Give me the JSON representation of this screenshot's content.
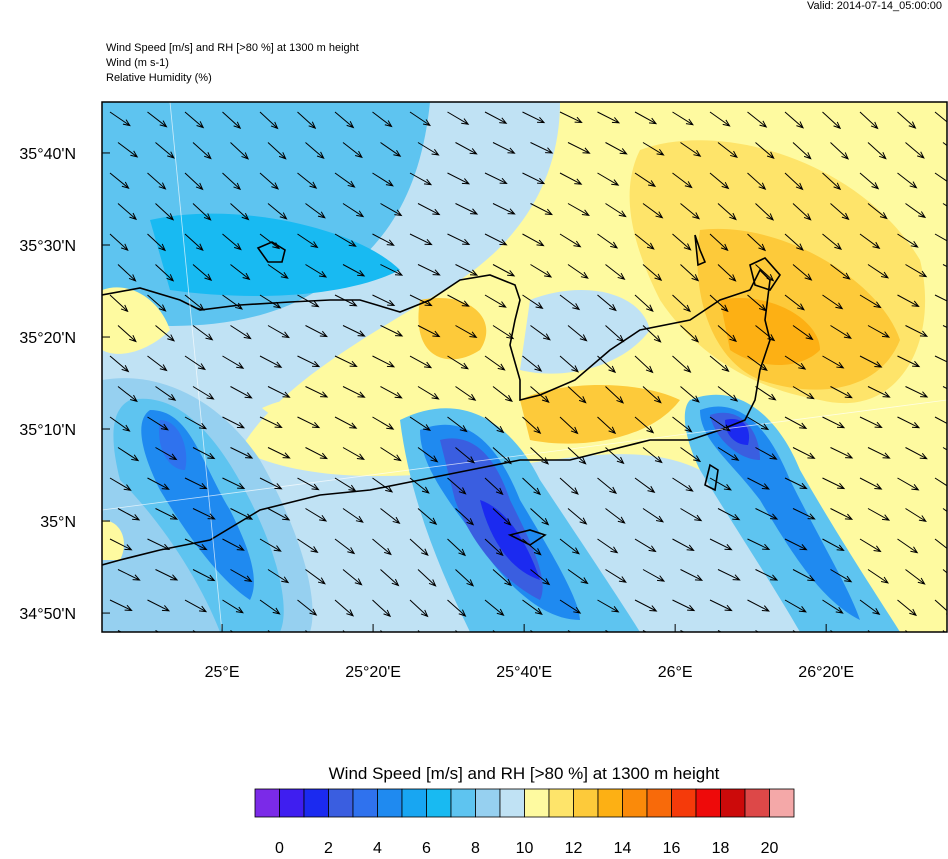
{
  "valid": "Valid: 2014-07-14_05:00:00",
  "header": [
    "Wind Speed [m/s] and RH [>80 %] at 1300 m height",
    "Wind   (m s-1)",
    "Relative Humidity   (%)"
  ],
  "map": {
    "lon_range": [
      24.735,
      26.6
    ],
    "lat_range": [
      34.799,
      35.759
    ],
    "lon_ticks": [
      {
        "value": 25,
        "label": "25°E"
      },
      {
        "value": 25.3333,
        "label": "25°20'E"
      },
      {
        "value": 25.6667,
        "label": "25°40'E"
      },
      {
        "value": 26,
        "label": "26°E"
      },
      {
        "value": 26.3333,
        "label": "26°20'E"
      }
    ],
    "lat_ticks": [
      {
        "value": 35.6667,
        "label": "35°40'N"
      },
      {
        "value": 35.5,
        "label": "35°30'N"
      },
      {
        "value": 35.3333,
        "label": "35°20'N"
      },
      {
        "value": 35.1667,
        "label": "35°10'N"
      },
      {
        "value": 35,
        "label": "35°N"
      },
      {
        "value": 34.8333,
        "label": "34°50'N"
      }
    ]
  },
  "colorbar": {
    "title": "Wind Speed [m/s] and RH [>80 %] at 1300 m height",
    "colors": [
      "#7b2ae8",
      "#3f1ef0",
      "#1b2af0",
      "#3a5ee0",
      "#2f72ee",
      "#1f8af0",
      "#18a6f2",
      "#18baf2",
      "#5ec4f0",
      "#96d0f0",
      "#c0e2f4",
      "#fefaa0",
      "#fee46a",
      "#fdca3a",
      "#fdb014",
      "#fa8a0a",
      "#f86a0a",
      "#f53a0a",
      "#ee0a0a",
      "#cc0a0a",
      "#dd4848",
      "#f4a8a8"
    ],
    "ticks": [
      0,
      2,
      4,
      6,
      8,
      10,
      12,
      14,
      16,
      18,
      20
    ]
  }
}
